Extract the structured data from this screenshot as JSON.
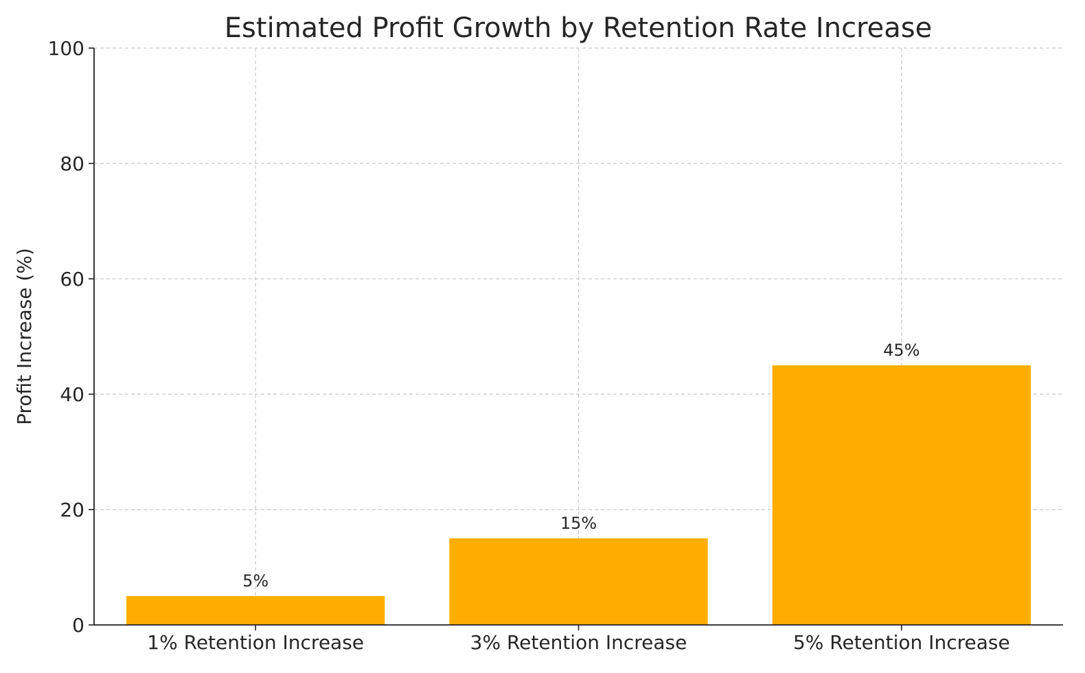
{
  "chart_data": {
    "type": "bar",
    "title": "Estimated Profit Growth by Retention Rate Increase",
    "xlabel": "",
    "ylabel": "Profit Increase (%)",
    "categories": [
      "1% Retention Increase",
      "3% Retention Increase",
      "5% Retention Increase"
    ],
    "values": [
      5,
      15,
      45
    ],
    "data_labels": [
      "5%",
      "15%",
      "45%"
    ],
    "ylim": [
      0,
      100
    ],
    "yticks": [
      0,
      20,
      40,
      60,
      80,
      100
    ],
    "grid": true,
    "bar_color": "#FFAE00"
  }
}
